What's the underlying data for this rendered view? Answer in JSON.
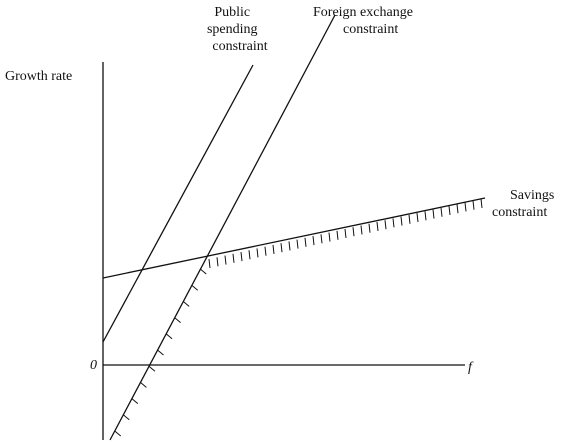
{
  "axes": {
    "y_label": "Growth rate",
    "origin": "0",
    "x_label": "f"
  },
  "constraints": [
    {
      "name_lines": [
        "Public",
        "spending",
        "constraint"
      ]
    },
    {
      "name_lines": [
        "Foreign exchange",
        "constraint"
      ]
    },
    {
      "name_lines": [
        "Savings",
        "constraint"
      ]
    }
  ]
}
